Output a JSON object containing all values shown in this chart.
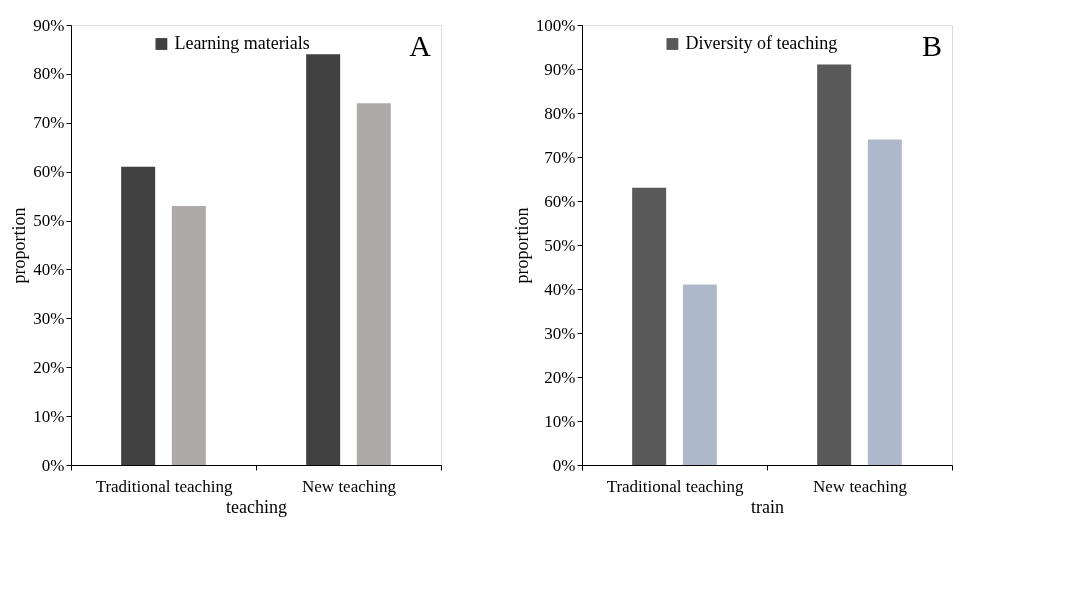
{
  "chart_data": [
    {
      "type": "bar",
      "categories": [
        "Traditional teaching",
        "New teaching"
      ],
      "xlabel": "teaching",
      "ylabel": "proportion",
      "annotations": [
        "A"
      ],
      "legend": "top",
      "series": [
        {
          "name": "Learning materials",
          "color": "#404040",
          "values": [
            61,
            84
          ]
        },
        {
          "color": "#aeaaaa",
          "values": [
            53,
            74
          ]
        }
      ],
      "ylim": [
        0,
        90
      ],
      "yticks": [
        {
          "value": 0,
          "label": "0%"
        },
        {
          "value": 10,
          "label": "10%"
        },
        {
          "value": 20,
          "label": "20%"
        },
        {
          "value": 30,
          "label": "30%"
        },
        {
          "value": 40,
          "label": "40%"
        },
        {
          "value": 50,
          "label": "50%"
        },
        {
          "value": 60,
          "label": "60%"
        },
        {
          "value": 70,
          "label": "70%"
        },
        {
          "value": 80,
          "label": "80%"
        },
        {
          "value": 90,
          "label": "90%"
        }
      ],
      "grid": false
    },
    {
      "type": "bar",
      "categories": [
        "Traditional teaching",
        "New teaching"
      ],
      "xlabel": "train",
      "ylabel": "proportion",
      "annotations": [
        "B"
      ],
      "legend": "top",
      "series": [
        {
          "name": "Diversity of teaching",
          "color": "#595959",
          "values": [
            63,
            91
          ]
        },
        {
          "color": "#adb9ca",
          "values": [
            41,
            74
          ]
        }
      ],
      "ylim": [
        0,
        100
      ],
      "yticks": [
        {
          "value": 0,
          "label": "0%"
        },
        {
          "value": 10,
          "label": "10%"
        },
        {
          "value": 20,
          "label": "20%"
        },
        {
          "value": 30,
          "label": "30%"
        },
        {
          "value": 40,
          "label": "40%"
        },
        {
          "value": 50,
          "label": "50%"
        },
        {
          "value": 60,
          "label": "60%"
        },
        {
          "value": 70,
          "label": "70%"
        },
        {
          "value": 80,
          "label": "80%"
        },
        {
          "value": 90,
          "label": "90%"
        },
        {
          "value": 100,
          "label": "100%"
        }
      ],
      "grid": false
    }
  ]
}
